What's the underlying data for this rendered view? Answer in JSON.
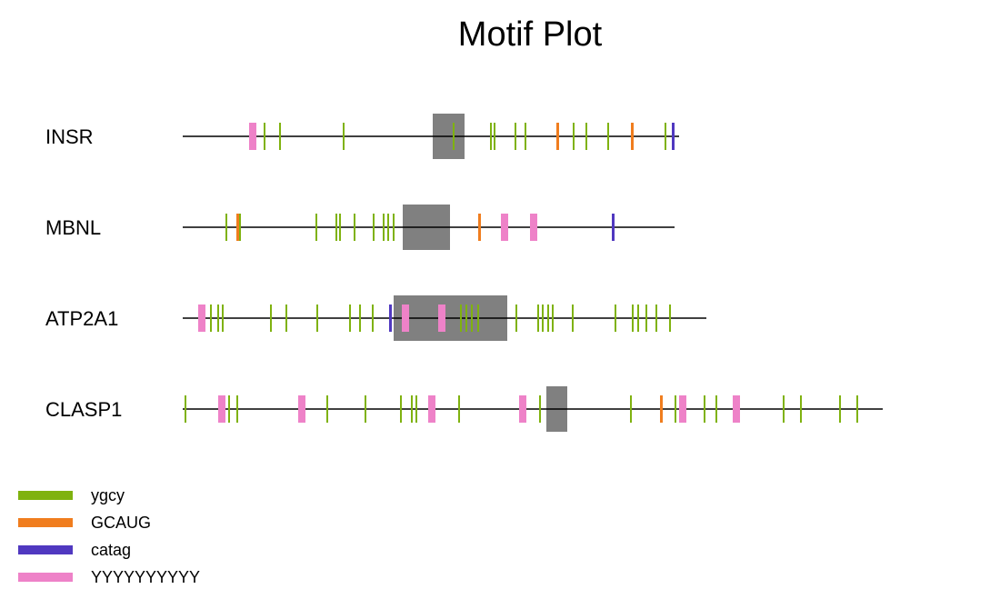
{
  "title": "Motif Plot",
  "motif_colors": {
    "ygcy": "#7fb20f",
    "GCAUG": "#f07d1e",
    "catag": "#5038c0",
    "YYYYYYYYYY": "#ee82c8"
  },
  "exon_color": "#808080",
  "legend": [
    {
      "label": "ygcy",
      "motif": "ygcy"
    },
    {
      "label": "GCAUG",
      "motif": "GCAUG"
    },
    {
      "label": "catag",
      "motif": "catag"
    },
    {
      "label": "YYYYYYYYYY",
      "motif": "YYYYYYYYYY"
    }
  ],
  "genes": [
    {
      "name": "INSR",
      "length": 546,
      "exon": [
        275,
        310
      ],
      "motifs": [
        {
          "type": "YYYYYYYYYY",
          "pos": 73,
          "len": 8
        },
        {
          "type": "ygcy",
          "pos": 89,
          "len": 2
        },
        {
          "type": "ygcy",
          "pos": 106,
          "len": 2
        },
        {
          "type": "ygcy",
          "pos": 176,
          "len": 2
        },
        {
          "type": "ygcy",
          "pos": 297,
          "len": 2
        },
        {
          "type": "ygcy",
          "pos": 338,
          "len": 2
        },
        {
          "type": "ygcy",
          "pos": 342,
          "len": 2
        },
        {
          "type": "ygcy",
          "pos": 365,
          "len": 2
        },
        {
          "type": "ygcy",
          "pos": 376,
          "len": 2
        },
        {
          "type": "GCAUG",
          "pos": 411,
          "len": 3
        },
        {
          "type": "ygcy",
          "pos": 429,
          "len": 2
        },
        {
          "type": "ygcy",
          "pos": 443,
          "len": 2
        },
        {
          "type": "ygcy",
          "pos": 467,
          "len": 2
        },
        {
          "type": "GCAUG",
          "pos": 493,
          "len": 3
        },
        {
          "type": "ygcy",
          "pos": 530,
          "len": 2
        },
        {
          "type": "catag",
          "pos": 538,
          "len": 3
        }
      ]
    },
    {
      "name": "MBNL",
      "length": 541,
      "exon": [
        242,
        294
      ],
      "motifs": [
        {
          "type": "ygcy",
          "pos": 47,
          "len": 2
        },
        {
          "type": "GCAUG",
          "pos": 59,
          "len": 3
        },
        {
          "type": "ygcy",
          "pos": 62,
          "len": 2
        },
        {
          "type": "ygcy",
          "pos": 146,
          "len": 2
        },
        {
          "type": "ygcy",
          "pos": 168,
          "len": 2
        },
        {
          "type": "ygcy",
          "pos": 172,
          "len": 2
        },
        {
          "type": "ygcy",
          "pos": 188,
          "len": 2
        },
        {
          "type": "ygcy",
          "pos": 209,
          "len": 2
        },
        {
          "type": "ygcy",
          "pos": 220,
          "len": 2
        },
        {
          "type": "ygcy",
          "pos": 225,
          "len": 2
        },
        {
          "type": "ygcy",
          "pos": 231,
          "len": 2
        },
        {
          "type": "GCAUG",
          "pos": 325,
          "len": 3
        },
        {
          "type": "YYYYYYYYYY",
          "pos": 350,
          "len": 8
        },
        {
          "type": "YYYYYYYYYY",
          "pos": 382,
          "len": 8
        },
        {
          "type": "catag",
          "pos": 472,
          "len": 3
        }
      ]
    },
    {
      "name": "ATP2A1",
      "length": 576,
      "exon": [
        232,
        357
      ],
      "motifs": [
        {
          "type": "YYYYYYYYYY",
          "pos": 17,
          "len": 8
        },
        {
          "type": "ygcy",
          "pos": 30,
          "len": 2
        },
        {
          "type": "ygcy",
          "pos": 38,
          "len": 2
        },
        {
          "type": "ygcy",
          "pos": 43,
          "len": 2
        },
        {
          "type": "ygcy",
          "pos": 96,
          "len": 2
        },
        {
          "type": "ygcy",
          "pos": 113,
          "len": 2
        },
        {
          "type": "ygcy",
          "pos": 147,
          "len": 2
        },
        {
          "type": "ygcy",
          "pos": 183,
          "len": 2
        },
        {
          "type": "ygcy",
          "pos": 194,
          "len": 2
        },
        {
          "type": "ygcy",
          "pos": 208,
          "len": 2
        },
        {
          "type": "catag",
          "pos": 227,
          "len": 3
        },
        {
          "type": "YYYYYYYYYY",
          "pos": 241,
          "len": 8
        },
        {
          "type": "YYYYYYYYYY",
          "pos": 281,
          "len": 8
        },
        {
          "type": "ygcy",
          "pos": 305,
          "len": 2
        },
        {
          "type": "ygcy",
          "pos": 311,
          "len": 2
        },
        {
          "type": "ygcy",
          "pos": 317,
          "len": 2
        },
        {
          "type": "ygcy",
          "pos": 324,
          "len": 2
        },
        {
          "type": "ygcy",
          "pos": 366,
          "len": 2
        },
        {
          "type": "ygcy",
          "pos": 390,
          "len": 2
        },
        {
          "type": "ygcy",
          "pos": 395,
          "len": 2
        },
        {
          "type": "ygcy",
          "pos": 401,
          "len": 2
        },
        {
          "type": "ygcy",
          "pos": 406,
          "len": 2
        },
        {
          "type": "ygcy",
          "pos": 428,
          "len": 2
        },
        {
          "type": "ygcy",
          "pos": 475,
          "len": 2
        },
        {
          "type": "ygcy",
          "pos": 494,
          "len": 2
        },
        {
          "type": "ygcy",
          "pos": 500,
          "len": 2
        },
        {
          "type": "ygcy",
          "pos": 509,
          "len": 2
        },
        {
          "type": "ygcy",
          "pos": 520,
          "len": 2
        },
        {
          "type": "ygcy",
          "pos": 535,
          "len": 2
        }
      ]
    },
    {
      "name": "CLASP1",
      "length": 770,
      "exon": [
        400,
        423
      ],
      "motifs": [
        {
          "type": "ygcy",
          "pos": 2,
          "len": 2
        },
        {
          "type": "YYYYYYYYYY",
          "pos": 39,
          "len": 8
        },
        {
          "type": "ygcy",
          "pos": 50,
          "len": 2
        },
        {
          "type": "ygcy",
          "pos": 59,
          "len": 2
        },
        {
          "type": "YYYYYYYYYY",
          "pos": 127,
          "len": 8
        },
        {
          "type": "ygcy",
          "pos": 158,
          "len": 2
        },
        {
          "type": "ygcy",
          "pos": 200,
          "len": 2
        },
        {
          "type": "ygcy",
          "pos": 239,
          "len": 2
        },
        {
          "type": "ygcy",
          "pos": 251,
          "len": 2
        },
        {
          "type": "ygcy",
          "pos": 256,
          "len": 2
        },
        {
          "type": "YYYYYYYYYY",
          "pos": 270,
          "len": 8
        },
        {
          "type": "ygcy",
          "pos": 303,
          "len": 2
        },
        {
          "type": "YYYYYYYYYY",
          "pos": 370,
          "len": 8
        },
        {
          "type": "ygcy",
          "pos": 392,
          "len": 2
        },
        {
          "type": "ygcy",
          "pos": 492,
          "len": 2
        },
        {
          "type": "GCAUG",
          "pos": 525,
          "len": 3
        },
        {
          "type": "ygcy",
          "pos": 541,
          "len": 2
        },
        {
          "type": "YYYYYYYYYY",
          "pos": 546,
          "len": 8
        },
        {
          "type": "ygcy",
          "pos": 573,
          "len": 2
        },
        {
          "type": "ygcy",
          "pos": 586,
          "len": 2
        },
        {
          "type": "YYYYYYYYYY",
          "pos": 605,
          "len": 8
        },
        {
          "type": "ygcy",
          "pos": 660,
          "len": 2
        },
        {
          "type": "ygcy",
          "pos": 679,
          "len": 2
        },
        {
          "type": "ygcy",
          "pos": 722,
          "len": 2
        },
        {
          "type": "ygcy",
          "pos": 741,
          "len": 2
        }
      ]
    }
  ]
}
